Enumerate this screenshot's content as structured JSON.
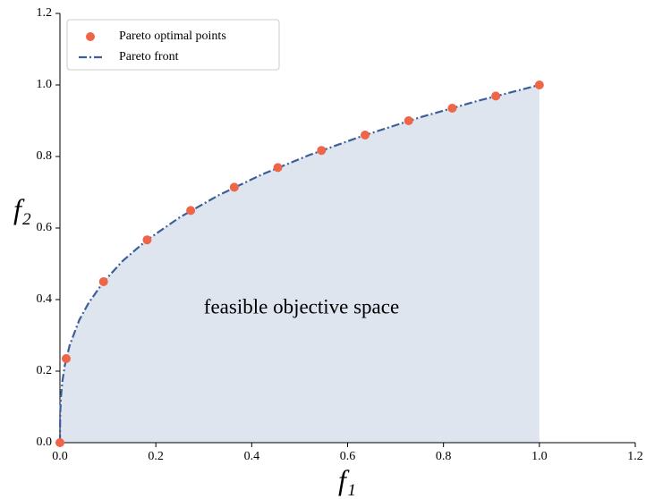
{
  "chart_data": {
    "type": "scatter",
    "xlim": [
      0,
      1.2
    ],
    "ylim": [
      0,
      1.2
    ],
    "xticks": [
      {
        "value": 0,
        "label": "0.0"
      },
      {
        "value": 0.2,
        "label": "0.2"
      },
      {
        "value": 0.4,
        "label": "0.4"
      },
      {
        "value": 0.6,
        "label": "0.6"
      },
      {
        "value": 0.8,
        "label": "0.8"
      },
      {
        "value": 1,
        "label": "1.0"
      },
      {
        "value": 1.2,
        "label": "1.2"
      }
    ],
    "yticks": [
      {
        "value": 0,
        "label": "0.0"
      },
      {
        "value": 0.2,
        "label": "0.2"
      },
      {
        "value": 0.4,
        "label": "0.4"
      },
      {
        "value": 0.6,
        "label": "0.6"
      },
      {
        "value": 0.8,
        "label": "0.8"
      },
      {
        "value": 1,
        "label": "1.0"
      },
      {
        "value": 1.2,
        "label": "1.2"
      }
    ],
    "x_label": "f₁",
    "y_label": "f₂",
    "annotation": "feasible objective space",
    "legend": "upper left",
    "series": [
      {
        "name": "Pareto optimal points",
        "type": "scatter",
        "color": "#ef6548",
        "x": [
          0,
          0.013,
          0.0909,
          0.1818,
          0.2727,
          0.3636,
          0.4545,
          0.5455,
          0.6364,
          0.7273,
          0.8182,
          0.9091,
          1.0
        ],
        "values": [
          0,
          0.235,
          0.45,
          0.567,
          0.649,
          0.714,
          0.769,
          0.817,
          0.86,
          0.9,
          0.935,
          0.969,
          1.0
        ]
      },
      {
        "name": "Pareto front",
        "type": "line",
        "color": "#3a5f9a",
        "fill": "#dee5ef",
        "linestyle": "dashdot",
        "x": [
          0,
          0.0005,
          0.002,
          0.005,
          0.01,
          0.02,
          0.04,
          0.06,
          0.09,
          0.13,
          0.18,
          0.25,
          0.33,
          0.42,
          0.52,
          0.63,
          0.75,
          0.87,
          1.0
        ],
        "values": [
          0,
          0.079,
          0.126,
          0.171,
          0.215,
          0.271,
          0.342,
          0.391,
          0.448,
          0.507,
          0.565,
          0.63,
          0.691,
          0.749,
          0.804,
          0.857,
          0.909,
          0.955,
          1.0
        ]
      }
    ]
  }
}
